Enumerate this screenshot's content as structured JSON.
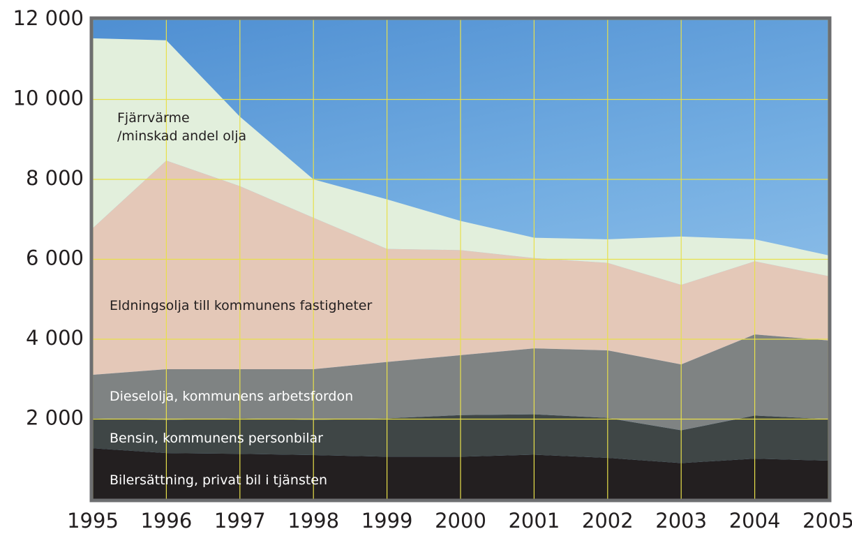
{
  "chart_data": {
    "type": "stacked-area",
    "x": [
      1995,
      1996,
      1997,
      1998,
      1999,
      2000,
      2001,
      2002,
      2003,
      2004,
      2005
    ],
    "xlim": [
      1995,
      2005
    ],
    "xticks": [
      1995,
      1996,
      1997,
      1998,
      1999,
      2000,
      2001,
      2002,
      2003,
      2004,
      2005
    ],
    "ylim": [
      0,
      12000
    ],
    "yticks": [
      {
        "value": 2000,
        "label": "2 000"
      },
      {
        "value": 4000,
        "label": "4 000"
      },
      {
        "value": 6000,
        "label": "6 000"
      },
      {
        "value": 8000,
        "label": "8 000"
      },
      {
        "value": 10000,
        "label": "10 000"
      },
      {
        "value": 12000,
        "label": "12 000"
      }
    ],
    "grid": true,
    "series": [
      {
        "name": "Bilersättning, privat bil i tjänsten",
        "color": "#231f20",
        "values": [
          1270,
          1150,
          1130,
          1100,
          1060,
          1060,
          1110,
          1030,
          900,
          1010,
          960
        ]
      },
      {
        "name": "Bensin, kommunens personbilar",
        "color": "#3f4646",
        "values": [
          750,
          830,
          890,
          880,
          960,
          1040,
          1010,
          1000,
          820,
          1080,
          1040
        ]
      },
      {
        "name": "Dieselolja, kommunens arbetsfordon",
        "color": "#7f8383",
        "values": [
          1090,
          1270,
          1230,
          1270,
          1410,
          1500,
          1650,
          1690,
          1650,
          2030,
          1970
        ]
      },
      {
        "name": "Eldningsolja till kommunens fastigheter",
        "color": "#e4c8b8",
        "values": [
          3670,
          5220,
          4580,
          3790,
          2830,
          2630,
          2260,
          2190,
          1990,
          1830,
          1610
        ]
      },
      {
        "name": "Fjärrvärme\n/minskad andel olja",
        "color": "#e2efdc",
        "values": [
          4750,
          3010,
          1740,
          960,
          1240,
          730,
          510,
          590,
          1210,
          550,
          520
        ]
      }
    ]
  }
}
